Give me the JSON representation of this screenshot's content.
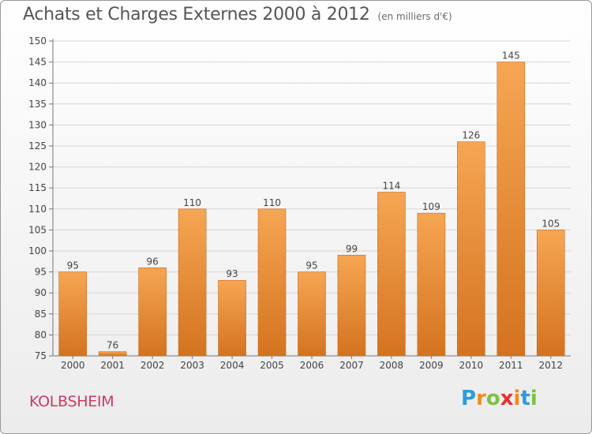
{
  "title": "Achats et Charges Externes 2000 à 2012",
  "subtitle": "(en milliers d'€)",
  "commune": "KOLBSHEIM",
  "logo": {
    "letters": [
      "P",
      "r",
      "o",
      "x",
      "i",
      "t",
      "i"
    ],
    "colors": [
      "#2e9be0",
      "#f08a1e",
      "#7cc242",
      "#e8302d",
      "#f08a1e",
      "#2e9be0",
      "#7cc242"
    ]
  },
  "chart_data": {
    "type": "bar",
    "title": "Achats et Charges Externes 2000 à 2012",
    "subtitle": "(en milliers d'€)",
    "xlabel": "",
    "ylabel": "",
    "categories": [
      "2000",
      "2001",
      "2002",
      "2003",
      "2004",
      "2005",
      "2006",
      "2007",
      "2008",
      "2009",
      "2010",
      "2011",
      "2012"
    ],
    "values": [
      95,
      76,
      96,
      110,
      93,
      110,
      95,
      99,
      114,
      109,
      126,
      145,
      105
    ],
    "ylim": [
      75,
      150
    ],
    "yticks": [
      75,
      80,
      85,
      90,
      95,
      100,
      105,
      110,
      115,
      120,
      125,
      130,
      135,
      140,
      145,
      150
    ],
    "grid": true,
    "bar_color": "#f0913a"
  }
}
